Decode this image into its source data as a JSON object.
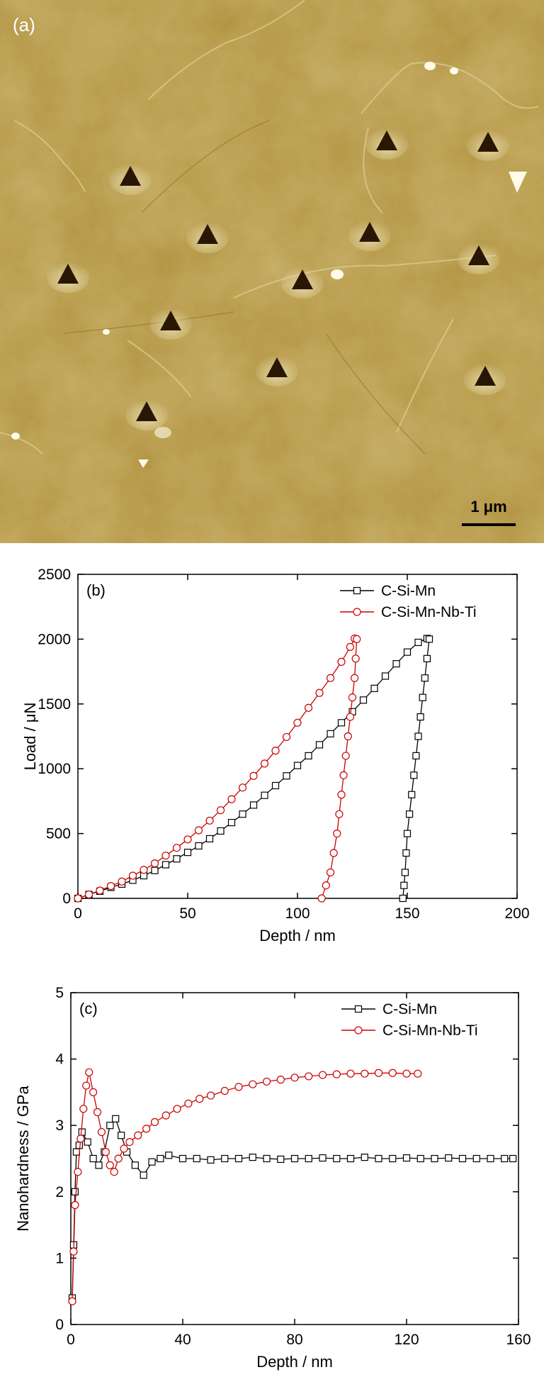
{
  "figure": {
    "panel_a": {
      "label": "(a)",
      "scale_bar_label": "1 μm"
    }
  },
  "colors": {
    "series_1": "#000000",
    "series_2": "#cc0000",
    "afm_base": "#b4943e"
  },
  "chart_data": [
    {
      "panel": "(b)",
      "type": "line",
      "xlabel": "Depth / nm",
      "ylabel": "Load / μN",
      "xlim": [
        0,
        200
      ],
      "ylim": [
        0,
        2500
      ],
      "xticks": [
        "0",
        "50",
        "100",
        "150",
        "200"
      ],
      "yticks": [
        "0",
        "500",
        "1000",
        "1500",
        "2000",
        "2500"
      ],
      "legend_position": "top-right",
      "grid": false,
      "series": [
        {
          "name": "C-Si-Mn",
          "marker": "square",
          "color": "#000000",
          "loading": [
            [
              0,
              0
            ],
            [
              5,
              30
            ],
            [
              10,
              55
            ],
            [
              15,
              85
            ],
            [
              20,
              110
            ],
            [
              25,
              140
            ],
            [
              30,
              175
            ],
            [
              35,
              215
            ],
            [
              40,
              260
            ],
            [
              45,
              305
            ],
            [
              50,
              355
            ],
            [
              55,
              405
            ],
            [
              60,
              460
            ],
            [
              65,
              520
            ],
            [
              70,
              585
            ],
            [
              75,
              650
            ],
            [
              80,
              720
            ],
            [
              85,
              795
            ],
            [
              90,
              870
            ],
            [
              95,
              945
            ],
            [
              100,
              1025
            ],
            [
              105,
              1100
            ],
            [
              110,
              1185
            ],
            [
              115,
              1270
            ],
            [
              120,
              1355
            ],
            [
              125,
              1440
            ],
            [
              130,
              1530
            ],
            [
              135,
              1620
            ],
            [
              140,
              1715
            ],
            [
              145,
              1810
            ],
            [
              150,
              1900
            ],
            [
              155,
              1975
            ],
            [
              159,
              2005
            ]
          ],
          "unloading": [
            [
              160,
              2000
            ],
            [
              159,
              1850
            ],
            [
              158,
              1700
            ],
            [
              157,
              1550
            ],
            [
              156,
              1400
            ],
            [
              155,
              1250
            ],
            [
              154,
              1100
            ],
            [
              153,
              950
            ],
            [
              152,
              800
            ],
            [
              151,
              650
            ],
            [
              150,
              500
            ],
            [
              149.5,
              350
            ],
            [
              149,
              200
            ],
            [
              148.5,
              100
            ],
            [
              148,
              0
            ]
          ]
        },
        {
          "name": "C-Si-Mn-Nb-Ti",
          "marker": "circle",
          "color": "#cc0000",
          "loading": [
            [
              0,
              0
            ],
            [
              5,
              30
            ],
            [
              10,
              60
            ],
            [
              15,
              95
            ],
            [
              20,
              130
            ],
            [
              25,
              175
            ],
            [
              30,
              220
            ],
            [
              35,
              270
            ],
            [
              40,
              330
            ],
            [
              45,
              390
            ],
            [
              50,
              455
            ],
            [
              55,
              525
            ],
            [
              60,
              600
            ],
            [
              65,
              680
            ],
            [
              70,
              765
            ],
            [
              75,
              855
            ],
            [
              80,
              945
            ],
            [
              85,
              1040
            ],
            [
              90,
              1140
            ],
            [
              95,
              1245
            ],
            [
              100,
              1355
            ],
            [
              105,
              1470
            ],
            [
              110,
              1585
            ],
            [
              115,
              1700
            ],
            [
              120,
              1825
            ],
            [
              124,
              1940
            ],
            [
              126,
              2005
            ]
          ],
          "unloading": [
            [
              127,
              2000
            ],
            [
              126.5,
              1850
            ],
            [
              126,
              1700
            ],
            [
              125,
              1550
            ],
            [
              124,
              1400
            ],
            [
              123,
              1250
            ],
            [
              122,
              1100
            ],
            [
              121,
              950
            ],
            [
              120,
              800
            ],
            [
              119,
              650
            ],
            [
              118,
              500
            ],
            [
              116.5,
              350
            ],
            [
              115,
              200
            ],
            [
              113,
              100
            ],
            [
              111,
              0
            ]
          ]
        }
      ]
    },
    {
      "panel": "(c)",
      "type": "line",
      "xlabel": "Depth / nm",
      "ylabel": "Nanohardness / GPa",
      "xlim": [
        0,
        160
      ],
      "ylim": [
        0,
        5
      ],
      "xticks": [
        "0",
        "40",
        "80",
        "120",
        "160"
      ],
      "yticks": [
        "0",
        "1",
        "2",
        "3",
        "4",
        "5"
      ],
      "legend_position": "top-right",
      "grid": false,
      "series": [
        {
          "name": "C-Si-Mn",
          "marker": "square",
          "color": "#000000",
          "points": [
            [
              0.5,
              0.4
            ],
            [
              1,
              1.2
            ],
            [
              1.5,
              2.0
            ],
            [
              2,
              2.6
            ],
            [
              3,
              2.7
            ],
            [
              4,
              2.9
            ],
            [
              6,
              2.75
            ],
            [
              8,
              2.5
            ],
            [
              10,
              2.4
            ],
            [
              12,
              2.6
            ],
            [
              14,
              3.0
            ],
            [
              16,
              3.1
            ],
            [
              18,
              2.85
            ],
            [
              20,
              2.6
            ],
            [
              23,
              2.4
            ],
            [
              26,
              2.25
            ],
            [
              29,
              2.45
            ],
            [
              32,
              2.5
            ],
            [
              35,
              2.55
            ],
            [
              40,
              2.5
            ],
            [
              45,
              2.5
            ],
            [
              50,
              2.48
            ],
            [
              55,
              2.5
            ],
            [
              60,
              2.5
            ],
            [
              65,
              2.52
            ],
            [
              70,
              2.5
            ],
            [
              75,
              2.49
            ],
            [
              80,
              2.5
            ],
            [
              85,
              2.5
            ],
            [
              90,
              2.51
            ],
            [
              95,
              2.5
            ],
            [
              100,
              2.5
            ],
            [
              105,
              2.52
            ],
            [
              110,
              2.5
            ],
            [
              115,
              2.5
            ],
            [
              120,
              2.51
            ],
            [
              125,
              2.5
            ],
            [
              130,
              2.5
            ],
            [
              135,
              2.51
            ],
            [
              140,
              2.5
            ],
            [
              145,
              2.5
            ],
            [
              150,
              2.5
            ],
            [
              155,
              2.5
            ],
            [
              158,
              2.5
            ]
          ]
        },
        {
          "name": "C-Si-Mn-Nb-Ti",
          "marker": "circle",
          "color": "#cc0000",
          "points": [
            [
              0.5,
              0.35
            ],
            [
              1,
              1.1
            ],
            [
              1.5,
              1.8
            ],
            [
              2.5,
              2.3
            ],
            [
              3.5,
              2.8
            ],
            [
              4.5,
              3.25
            ],
            [
              5.5,
              3.6
            ],
            [
              6.5,
              3.8
            ],
            [
              8,
              3.5
            ],
            [
              9.5,
              3.2
            ],
            [
              11,
              2.9
            ],
            [
              12.5,
              2.6
            ],
            [
              14,
              2.4
            ],
            [
              15.5,
              2.3
            ],
            [
              17,
              2.5
            ],
            [
              19,
              2.65
            ],
            [
              21,
              2.75
            ],
            [
              24,
              2.85
            ],
            [
              27,
              2.95
            ],
            [
              30,
              3.05
            ],
            [
              34,
              3.15
            ],
            [
              38,
              3.25
            ],
            [
              42,
              3.33
            ],
            [
              46,
              3.4
            ],
            [
              50,
              3.45
            ],
            [
              55,
              3.52
            ],
            [
              60,
              3.58
            ],
            [
              65,
              3.62
            ],
            [
              70,
              3.66
            ],
            [
              75,
              3.69
            ],
            [
              80,
              3.72
            ],
            [
              85,
              3.74
            ],
            [
              90,
              3.76
            ],
            [
              95,
              3.77
            ],
            [
              100,
              3.78
            ],
            [
              105,
              3.78
            ],
            [
              110,
              3.79
            ],
            [
              115,
              3.79
            ],
            [
              120,
              3.78
            ],
            [
              124,
              3.78
            ]
          ]
        }
      ]
    }
  ]
}
